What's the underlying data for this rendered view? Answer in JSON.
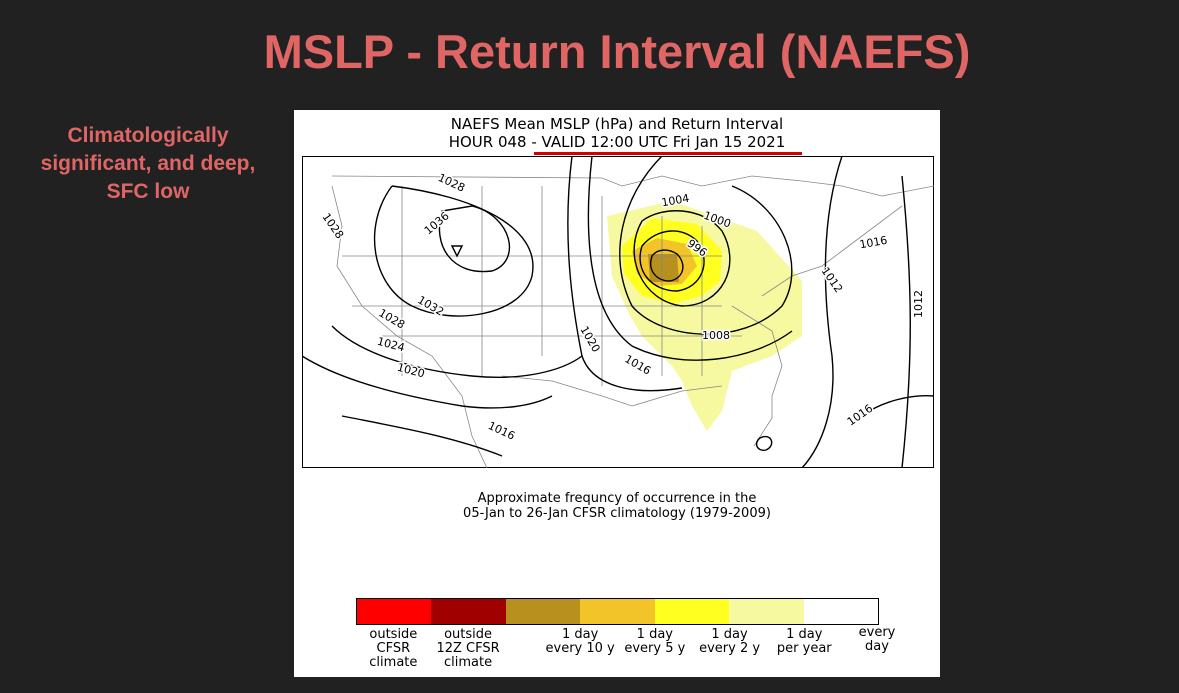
{
  "slide": {
    "title": "MSLP - Return Interval (NAEFS)",
    "side_note": "Climatologically significant, and deep, SFC low"
  },
  "figure": {
    "title_line1": "NAEFS Mean MSLP (hPa) and Return Interval",
    "title_line2": "HOUR 048 - VALID 12:00 UTC Fri Jan 15 2021",
    "caption_line1": "Approximate frequncy of occurrence in the",
    "caption_line2": "05-Jan to 26-Jan CFSR climatology (1979-2009)",
    "highlight_color": "#d40000"
  },
  "contour_labels": [
    "1028",
    "1036",
    "1028",
    "1032",
    "1028",
    "1024",
    "1020",
    "1016",
    "1020",
    "1016",
    "1004",
    "1000",
    "996",
    "1008",
    "1016",
    "1012",
    "1012",
    "1016"
  ],
  "legend": {
    "colors": [
      "#ff0000",
      "#a00000",
      "#b8901e",
      "#f2c42a",
      "#ffff20",
      "#f6f9a0",
      "#ffffff"
    ],
    "labels": [
      "outside\nCFSR\nclimate",
      "outside\n12Z CFSR\nclimate",
      "1 day\nevery 10 y",
      "1 day\nevery 5 y",
      "1 day\nevery 2 y",
      "1 day\nper year",
      "every\nday"
    ]
  }
}
